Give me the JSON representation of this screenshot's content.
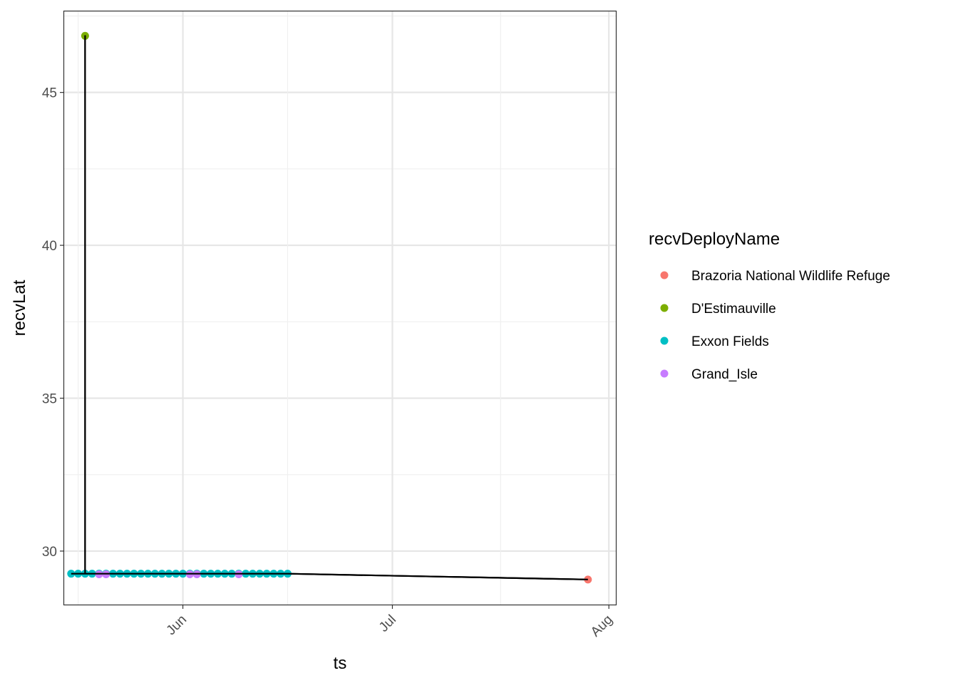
{
  "chart_data": {
    "type": "scatter",
    "xlabel": "ts",
    "ylabel": "recvLat",
    "x_ticks": [
      {
        "label": "Jun",
        "date": "2023-06-01"
      },
      {
        "label": "Jul",
        "date": "2023-07-01"
      },
      {
        "label": "Aug",
        "date": "2023-08-01"
      }
    ],
    "y_ticks": [
      30,
      35,
      40,
      45
    ],
    "xlim": [
      "2023-05-15",
      "2023-08-02"
    ],
    "ylim": [
      28.25,
      47.65
    ],
    "grid": true,
    "legend": {
      "title": "recvDeployName",
      "position": "right",
      "entries": [
        {
          "label": "Brazoria National Wildlife Refuge",
          "color": "#F8766D"
        },
        {
          "label": "D'Estimauville",
          "color": "#7CAE00"
        },
        {
          "label": "Exxon Fields",
          "color": "#00BFC4"
        },
        {
          "label": "Grand_Isle",
          "color": "#C77CFF"
        }
      ]
    },
    "series": [
      {
        "name": "Exxon Fields",
        "color": "#00BFC4",
        "points": [
          [
            "2023-05-16",
            29.26
          ],
          [
            "2023-05-17",
            29.26
          ],
          [
            "2023-05-18",
            29.26
          ],
          [
            "2023-05-19",
            29.26
          ],
          [
            "2023-05-20",
            29.26
          ],
          [
            "2023-05-21",
            29.26
          ],
          [
            "2023-05-22",
            29.26
          ],
          [
            "2023-05-23",
            29.26
          ],
          [
            "2023-05-24",
            29.26
          ],
          [
            "2023-05-25",
            29.26
          ],
          [
            "2023-05-26",
            29.26
          ],
          [
            "2023-05-27",
            29.26
          ],
          [
            "2023-05-28",
            29.26
          ],
          [
            "2023-05-29",
            29.26
          ],
          [
            "2023-05-30",
            29.26
          ],
          [
            "2023-05-31",
            29.26
          ],
          [
            "2023-06-01",
            29.26
          ],
          [
            "2023-06-02",
            29.26
          ],
          [
            "2023-06-03",
            29.26
          ],
          [
            "2023-06-04",
            29.26
          ],
          [
            "2023-06-05",
            29.26
          ],
          [
            "2023-06-06",
            29.26
          ],
          [
            "2023-06-07",
            29.26
          ],
          [
            "2023-06-08",
            29.26
          ],
          [
            "2023-06-09",
            29.26
          ],
          [
            "2023-06-10",
            29.26
          ],
          [
            "2023-06-11",
            29.26
          ],
          [
            "2023-06-12",
            29.26
          ],
          [
            "2023-06-13",
            29.26
          ],
          [
            "2023-06-14",
            29.26
          ],
          [
            "2023-06-15",
            29.26
          ],
          [
            "2023-06-16",
            29.26
          ]
        ]
      },
      {
        "name": "Grand_Isle",
        "color": "#C77CFF",
        "points": [
          [
            "2023-05-20",
            29.24
          ],
          [
            "2023-05-21",
            29.24
          ],
          [
            "2023-06-02",
            29.24
          ],
          [
            "2023-06-03",
            29.24
          ],
          [
            "2023-06-09",
            29.24
          ]
        ]
      },
      {
        "name": "D'Estimauville",
        "color": "#7CAE00",
        "points": [
          [
            "2023-05-18",
            46.85
          ]
        ]
      },
      {
        "name": "Brazoria National Wildlife Refuge",
        "color": "#F8766D",
        "points": [
          [
            "2023-07-29",
            29.07
          ]
        ]
      }
    ],
    "track": [
      [
        "2023-05-16",
        29.26
      ],
      [
        "2023-05-18",
        29.26
      ],
      [
        "2023-05-18",
        46.85
      ],
      [
        "2023-05-18",
        29.26
      ],
      [
        "2023-06-16",
        29.26
      ],
      [
        "2023-07-29",
        29.07
      ]
    ]
  }
}
